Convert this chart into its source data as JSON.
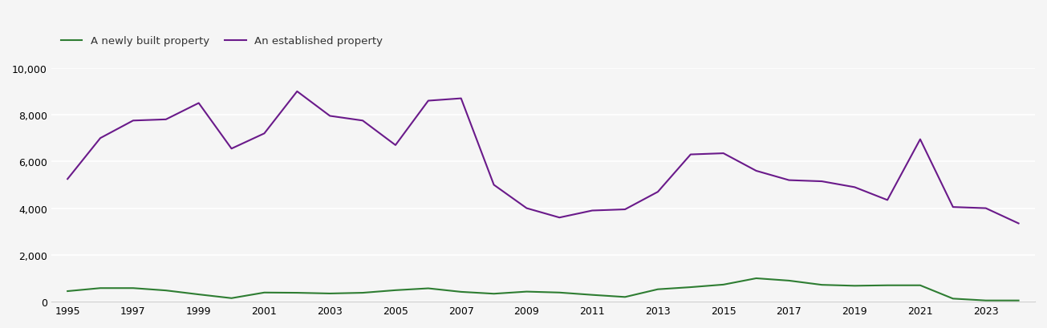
{
  "years": [
    1995,
    1996,
    1997,
    1998,
    1999,
    2000,
    2001,
    2002,
    2003,
    2004,
    2005,
    2006,
    2007,
    2008,
    2009,
    2010,
    2011,
    2012,
    2013,
    2014,
    2015,
    2016,
    2017,
    2018,
    2019,
    2020,
    2021,
    2022,
    2023,
    2024
  ],
  "new_homes": [
    450,
    580,
    580,
    480,
    310,
    150,
    390,
    380,
    350,
    380,
    490,
    570,
    420,
    340,
    430,
    390,
    290,
    200,
    530,
    620,
    730,
    1000,
    900,
    720,
    680,
    700,
    700,
    130,
    50,
    50
  ],
  "established_homes": [
    5250,
    7000,
    7750,
    7800,
    8500,
    6550,
    7200,
    9000,
    7950,
    7750,
    6700,
    8600,
    8700,
    5000,
    4000,
    3600,
    3900,
    3950,
    4700,
    6300,
    6350,
    5600,
    5200,
    5150,
    4900,
    4350,
    6950,
    4050,
    4000,
    3350
  ],
  "new_color": "#2e7d32",
  "established_color": "#6a1a8a",
  "legend_new": "A newly built property",
  "legend_established": "An established property",
  "ylim": [
    0,
    10000
  ],
  "yticks": [
    0,
    2000,
    4000,
    6000,
    8000,
    10000
  ],
  "background_color": "#f5f5f5",
  "grid_color": "#ffffff",
  "line_width": 1.5
}
